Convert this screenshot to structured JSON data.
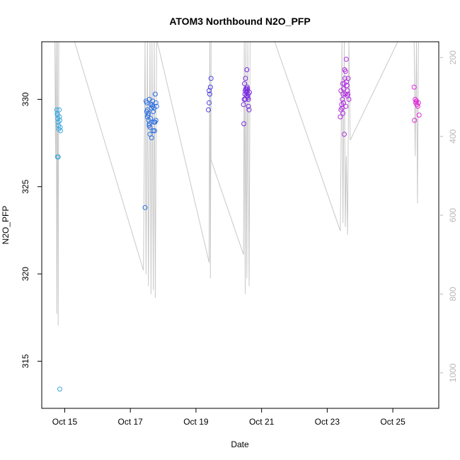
{
  "chart_data": {
    "type": "scatter",
    "title": "ATOM3 Northbound N2O_PFP",
    "xlabel": "Date",
    "ylabel": "N2O_PFP",
    "x_unit": "days (October)",
    "xlim": [
      14.3,
      26.4
    ],
    "ylim": [
      312.3,
      333.3
    ],
    "y_ticks": [
      315,
      320,
      325,
      330
    ],
    "x_ticks": [
      {
        "value": 15,
        "label": "Oct 15"
      },
      {
        "value": 17,
        "label": "Oct 17"
      },
      {
        "value": 19,
        "label": "Oct 19"
      },
      {
        "value": 21,
        "label": "Oct 21"
      },
      {
        "value": 23,
        "label": "Oct 23"
      },
      {
        "value": 25,
        "label": "Oct 25"
      }
    ],
    "secondary_axis": {
      "side": "right",
      "color": "#b8b8b8",
      "range": [
        1090,
        160
      ],
      "ticks": [
        200,
        400,
        600,
        800,
        1000
      ]
    },
    "pressure_trace": {
      "color": "#c8c8c8",
      "points": [
        [
          14.7,
          150
        ],
        [
          14.72,
          450
        ],
        [
          14.74,
          150
        ],
        [
          14.76,
          850
        ],
        [
          14.78,
          150
        ],
        [
          14.8,
          880
        ],
        [
          14.82,
          150
        ],
        [
          14.84,
          150
        ],
        [
          14.88,
          150
        ],
        [
          15.3,
          150
        ],
        [
          17.4,
          740
        ],
        [
          17.45,
          150
        ],
        [
          17.48,
          750
        ],
        [
          17.52,
          150
        ],
        [
          17.55,
          780
        ],
        [
          17.6,
          150
        ],
        [
          17.63,
          800
        ],
        [
          17.66,
          150
        ],
        [
          17.7,
          790
        ],
        [
          17.73,
          150
        ],
        [
          17.76,
          810
        ],
        [
          17.8,
          150
        ],
        [
          17.82,
          150
        ],
        [
          19.4,
          720
        ],
        [
          19.42,
          150
        ],
        [
          19.44,
          760
        ],
        [
          19.46,
          150
        ],
        [
          19.46,
          460
        ],
        [
          20.45,
          700
        ],
        [
          20.47,
          150
        ],
        [
          20.5,
          800
        ],
        [
          20.52,
          150
        ],
        [
          20.55,
          760
        ],
        [
          20.58,
          150
        ],
        [
          20.62,
          780
        ],
        [
          20.65,
          150
        ],
        [
          20.68,
          150
        ],
        [
          21.4,
          150
        ],
        [
          23.4,
          640
        ],
        [
          23.45,
          150
        ],
        [
          23.48,
          620
        ],
        [
          23.52,
          150
        ],
        [
          23.55,
          630
        ],
        [
          23.58,
          450
        ],
        [
          23.62,
          650
        ],
        [
          23.66,
          150
        ],
        [
          23.7,
          410
        ],
        [
          25.15,
          150
        ],
        [
          25.65,
          150
        ],
        [
          25.68,
          450
        ],
        [
          25.72,
          150
        ],
        [
          25.75,
          570
        ],
        [
          25.78,
          150
        ]
      ]
    },
    "series": [
      {
        "color": "#38a6dd",
        "x": [
          14.76,
          14.77,
          14.78,
          14.79,
          14.8,
          14.81,
          14.82,
          14.83,
          14.84,
          14.85,
          14.86,
          14.87,
          14.78,
          14.8,
          14.85
        ],
        "y": [
          329.4,
          329.2,
          329.1,
          328.9,
          328.7,
          328.5,
          328.3,
          329.4,
          329.0,
          328.8,
          328.4,
          328.2,
          326.7,
          326.7,
          313.4
        ]
      },
      {
        "color": "#2a6ee0",
        "x": [
          17.45,
          17.48,
          17.5,
          17.52,
          17.54,
          17.56,
          17.58,
          17.6,
          17.62,
          17.64,
          17.66,
          17.68,
          17.7,
          17.72,
          17.74,
          17.76,
          17.78,
          17.8,
          17.55,
          17.57,
          17.6,
          17.65,
          17.7,
          17.75,
          17.58,
          17.62,
          17.5,
          17.68,
          17.72,
          17.78,
          17.52
        ],
        "y": [
          323.8,
          329.9,
          329.8,
          329.4,
          329.1,
          328.8,
          328.6,
          328.4,
          328.9,
          329.5,
          329.7,
          329.6,
          329.3,
          328.7,
          328.2,
          330.3,
          329.8,
          329.6,
          329.2,
          328.5,
          328.0,
          327.8,
          328.2,
          328.7,
          330.0,
          329.7,
          329.3,
          329.9,
          329.5,
          328.8,
          329.0
        ]
      },
      {
        "color": "#4a3ee3",
        "x": [
          19.38,
          19.4,
          19.42,
          19.44,
          19.46,
          19.4
        ],
        "y": [
          329.4,
          329.8,
          330.3,
          330.7,
          331.2,
          330.5
        ]
      },
      {
        "color": "#7a2ae0",
        "x": [
          20.45,
          20.47,
          20.49,
          20.5,
          20.52,
          20.54,
          20.56,
          20.58,
          20.6,
          20.62,
          20.48,
          20.51,
          20.53,
          20.55,
          20.57,
          20.59,
          20.46,
          20.5,
          20.54,
          20.6,
          20.63,
          20.52,
          20.56,
          20.58
        ],
        "y": [
          329.7,
          330.0,
          330.3,
          330.5,
          330.6,
          330.4,
          330.7,
          330.2,
          330.0,
          329.4,
          330.9,
          331.2,
          330.6,
          331.7,
          330.6,
          330.3,
          328.6,
          330.0,
          330.2,
          329.6,
          330.4,
          330.6,
          330.5,
          330.1
        ]
      },
      {
        "color": "#b02ae0",
        "x": [
          23.4,
          23.42,
          23.44,
          23.46,
          23.48,
          23.5,
          23.52,
          23.54,
          23.56,
          23.58,
          23.6,
          23.62,
          23.64,
          23.66,
          23.45,
          23.5,
          23.55,
          23.6,
          23.48,
          23.52,
          23.57,
          23.62,
          23.42,
          23.47,
          23.53,
          23.58,
          23.63
        ],
        "y": [
          329.0,
          329.4,
          329.7,
          330.0,
          330.3,
          330.6,
          330.9,
          331.2,
          331.6,
          332.3,
          330.8,
          330.5,
          331.2,
          330.0,
          329.5,
          329.8,
          330.3,
          330.8,
          329.2,
          328.0,
          329.6,
          330.2,
          330.5,
          330.9,
          331.7,
          331.0,
          330.3
        ]
      },
      {
        "color": "#e02ad8",
        "x": [
          25.65,
          25.68,
          25.7,
          25.72,
          25.74,
          25.76,
          25.78,
          25.8,
          25.66,
          25.71
        ],
        "y": [
          330.7,
          330.0,
          329.8,
          329.9,
          329.7,
          329.6,
          329.8,
          329.1,
          328.8,
          329.9
        ]
      }
    ]
  }
}
